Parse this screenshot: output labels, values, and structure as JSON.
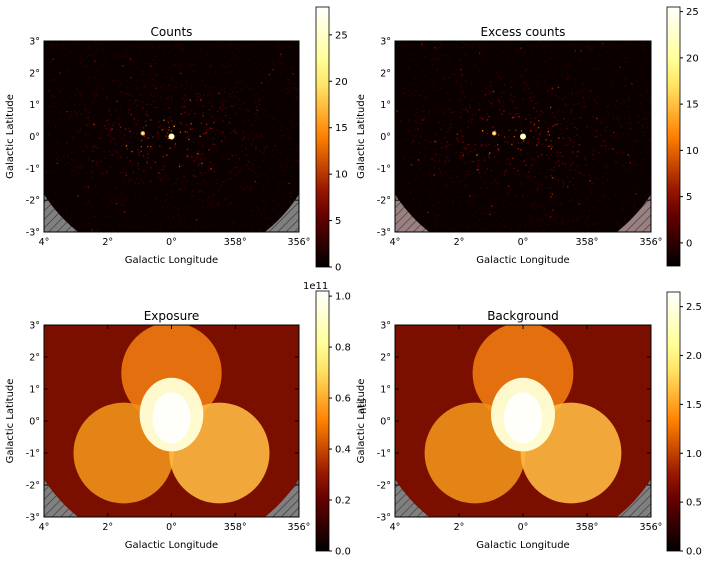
{
  "figure": {
    "exponent_label": "1e11",
    "overlay_fragment": "nts"
  },
  "chart_data": [
    {
      "type": "heatmap",
      "title": "Counts",
      "xlabel": "Galactic Longitude",
      "ylabel": "Galactic Latitude",
      "x_ticks": [
        "4°",
        "2°",
        "0°",
        "358°",
        "356°"
      ],
      "y_ticks": [
        "3°",
        "2°",
        "1°",
        "0°",
        "-1°",
        "-2°",
        "-3°"
      ],
      "xlim": [
        4,
        -4
      ],
      "ylim": [
        -3,
        3
      ],
      "colormap": "afmhot",
      "colorbar": {
        "range": [
          0,
          28
        ],
        "ticks": [
          0,
          5,
          10,
          15,
          20,
          25
        ],
        "tick_labels": [
          "0",
          "5",
          "10",
          "15",
          "20",
          "25"
        ]
      },
      "masked_hatch": true,
      "sources": [
        {
          "l": 0.0,
          "b": 0.0,
          "level": "max"
        },
        {
          "l": 0.9,
          "b": 0.1,
          "level": "high"
        }
      ]
    },
    {
      "type": "heatmap",
      "title": "Excess counts",
      "xlabel": "Galactic Longitude",
      "ylabel": "Galactic Latitude",
      "x_ticks": [
        "4°",
        "2°",
        "0°",
        "358°",
        "356°"
      ],
      "y_ticks": [
        "3°",
        "2°",
        "1°",
        "0°",
        "-1°",
        "-2°",
        "-3°"
      ],
      "xlim": [
        4,
        -4
      ],
      "ylim": [
        -3,
        3
      ],
      "colormap": "afmhot",
      "colorbar": {
        "range": [
          -2.5,
          25.5
        ],
        "ticks": [
          0,
          5,
          10,
          15,
          20,
          25
        ],
        "tick_labels": [
          "0",
          "5",
          "10",
          "15",
          "20",
          "25"
        ],
        "extra_ticks": [
          -2.5
        ]
      },
      "masked_hatch": true,
      "sources": [
        {
          "l": 0.0,
          "b": 0.0,
          "level": "max"
        },
        {
          "l": 0.9,
          "b": 0.1,
          "level": "high"
        }
      ]
    },
    {
      "type": "heatmap",
      "title": "Exposure",
      "xlabel": "Galactic Longitude",
      "ylabel": "Galactic Latitude",
      "x_ticks": [
        "4°",
        "2°",
        "0°",
        "358°",
        "356°"
      ],
      "y_ticks": [
        "3°",
        "2°",
        "1°",
        "0°",
        "-1°",
        "-2°",
        "-3°"
      ],
      "xlim": [
        4,
        -4
      ],
      "ylim": [
        -3,
        3
      ],
      "colormap": "afmhot",
      "colorbar": {
        "range": [
          0,
          1.02
        ],
        "ticks": [
          0,
          0.2,
          0.4,
          0.6,
          0.8,
          1.0
        ],
        "tick_labels": [
          "0.0",
          "0.2",
          "0.4",
          "0.6",
          "0.8",
          "1.0"
        ],
        "offset_label": "1e11"
      },
      "masked_hatch": true,
      "pointings": [
        {
          "l": 0.0,
          "b": 1.5
        },
        {
          "l": 1.5,
          "b": -1.0
        },
        {
          "l": -1.5,
          "b": -1.0
        }
      ]
    },
    {
      "type": "heatmap",
      "title": "Background",
      "xlabel": "Galactic Longitude",
      "ylabel": "Galactic Latitude",
      "x_ticks": [
        "4°",
        "2°",
        "0°",
        "358°",
        "356°"
      ],
      "y_ticks": [
        "3°",
        "2°",
        "1°",
        "0°",
        "-1°",
        "-2°",
        "-3°"
      ],
      "xlim": [
        4,
        -4
      ],
      "ylim": [
        -3,
        3
      ],
      "colormap": "afmhot",
      "colorbar": {
        "range": [
          0,
          2.65
        ],
        "ticks": [
          0,
          0.5,
          1.0,
          1.5,
          2.0,
          2.5
        ],
        "tick_labels": [
          "0.0",
          "0.5",
          "1.0",
          "1.5",
          "2.0",
          "2.5"
        ]
      },
      "masked_hatch": true,
      "pointings": [
        {
          "l": 0.0,
          "b": 1.5
        },
        {
          "l": 1.5,
          "b": -1.0
        },
        {
          "l": -1.5,
          "b": -1.0
        }
      ]
    }
  ]
}
